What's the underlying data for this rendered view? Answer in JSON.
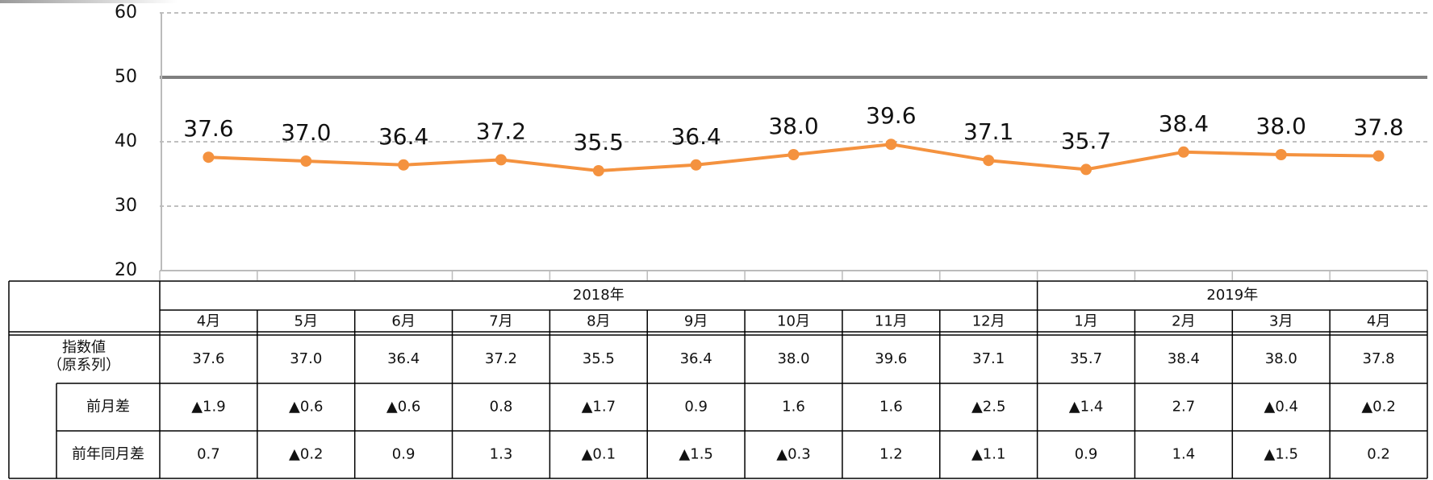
{
  "chart_data": {
    "type": "line",
    "categories": [
      "4月",
      "5月",
      "6月",
      "7月",
      "8月",
      "9月",
      "10月",
      "11月",
      "12月",
      "1月",
      "2月",
      "3月",
      "4月"
    ],
    "values": [
      37.6,
      37.0,
      36.4,
      37.2,
      35.5,
      36.4,
      38.0,
      39.6,
      37.1,
      35.7,
      38.4,
      38.0,
      37.8
    ],
    "value_labels": [
      "37.6",
      "37.0",
      "36.4",
      "37.2",
      "35.5",
      "36.4",
      "38.0",
      "39.6",
      "37.1",
      "35.7",
      "38.4",
      "38.0",
      "37.8"
    ],
    "color": "#f4923f",
    "ylim": [
      20,
      60
    ],
    "yticks": [
      20,
      30,
      40,
      50,
      60
    ],
    "grid": true,
    "reference_line": 50,
    "table": {
      "years": [
        {
          "label": "2018年",
          "span": 9
        },
        {
          "label": "2019年",
          "span": 4
        }
      ],
      "index_label": [
        "指数値",
        "（原系列）"
      ],
      "rows": [
        {
          "label": "前月差",
          "cells": [
            "▲1.9",
            "▲0.6",
            "▲0.6",
            "0.8",
            "▲1.7",
            "0.9",
            "1.6",
            "1.6",
            "▲2.5",
            "▲1.4",
            "2.7",
            "▲0.4",
            "▲0.2"
          ]
        },
        {
          "label": "前年同月差",
          "cells": [
            "0.7",
            "▲0.2",
            "0.9",
            "1.3",
            "▲0.1",
            "▲1.5",
            "▲0.3",
            "1.2",
            "▲1.1",
            "0.9",
            "1.4",
            "▲1.5",
            "0.2"
          ]
        }
      ]
    }
  }
}
